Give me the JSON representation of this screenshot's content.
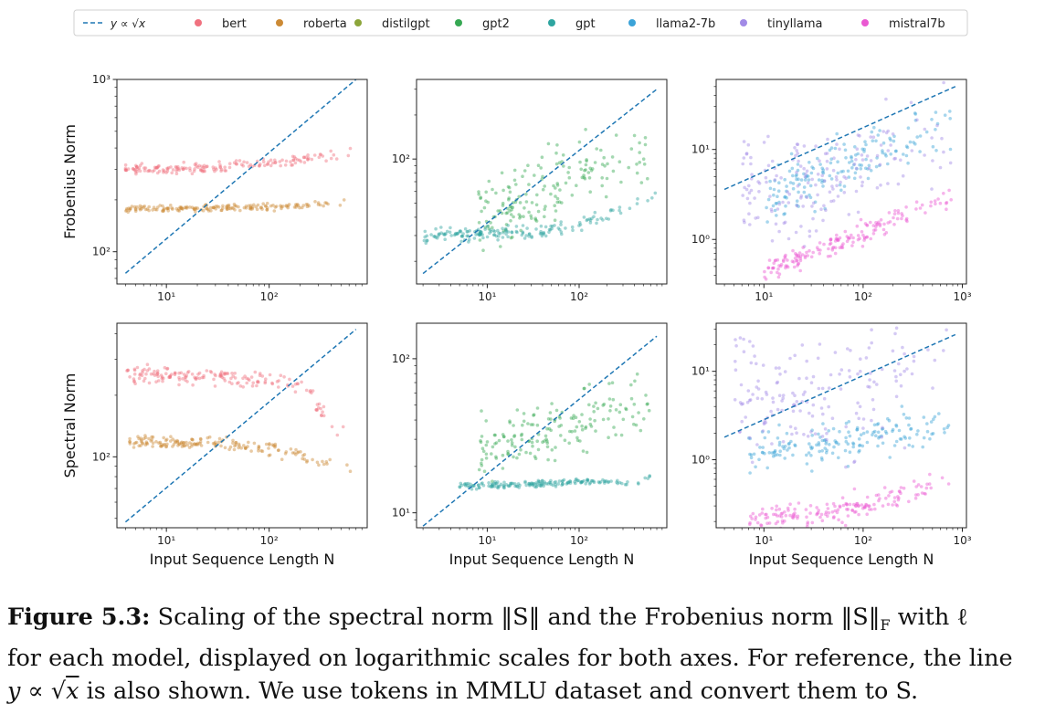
{
  "legend": [
    {
      "label": "y ∝ √x",
      "kind": "line",
      "color": "#1f77b4"
    },
    {
      "label": "bert",
      "kind": "dot",
      "color": "#f0717f"
    },
    {
      "label": "roberta",
      "kind": "dot",
      "color": "#cc8a35"
    },
    {
      "label": "distilgpt",
      "kind": "dot",
      "color": "#8ca53a"
    },
    {
      "label": "gpt2",
      "kind": "dot",
      "color": "#36a853"
    },
    {
      "label": "gpt",
      "kind": "dot",
      "color": "#2ea5a0"
    },
    {
      "label": "llama2-7b",
      "kind": "dot",
      "color": "#3ba3d8"
    },
    {
      "label": "tinyllama",
      "kind": "dot",
      "color": "#a18ae6"
    },
    {
      "label": "mistral7b",
      "kind": "dot",
      "color": "#ea59d2"
    }
  ],
  "caption": {
    "label": "Figure 5.3:",
    "line1": "Scaling of the spectral norm ‖S‖ and the Frobenius norm ‖S‖",
    "line1_sub": "F",
    "line1_end": "with ℓ",
    "line2": "for each model, displayed on logarithmic scales for both axes. For reference, the line",
    "line3_prefix": "y ∝ √",
    "line3_x": "x",
    "line3": "is also shown. We use tokens in MMLU dataset and convert them to S."
  },
  "chart_data": [
    {
      "type": "scatter",
      "row": "frobenius",
      "column": 1,
      "xlabel": "",
      "ylabel": "Frobenius Norm",
      "xscale": "log",
      "yscale": "log",
      "xlim": [
        3.3,
        900
      ],
      "ylim": [
        65,
        1000
      ],
      "xticks": [
        {
          "v": 10,
          "label": "10¹"
        },
        {
          "v": 100,
          "label": "10²"
        }
      ],
      "yticks": [
        {
          "v": 100,
          "label": "10²"
        },
        {
          "v": 1000,
          "label": "10³"
        }
      ],
      "reference": {
        "name": "y ∝ √x",
        "points": [
          [
            4,
            75
          ],
          [
            700,
            1000
          ]
        ]
      },
      "series": [
        {
          "name": "bert",
          "color": "#f0717f",
          "curve": [
            [
              4,
              300
            ],
            [
              20,
              305
            ],
            [
              80,
              320
            ],
            [
              200,
              340
            ],
            [
              450,
              370
            ],
            [
              650,
              375
            ]
          ],
          "spread": 0.015
        },
        {
          "name": "roberta",
          "color": "#cc8a35",
          "curve": [
            [
              4,
              178
            ],
            [
              30,
              180
            ],
            [
              100,
              183
            ],
            [
              300,
              188
            ],
            [
              600,
              195
            ]
          ],
          "spread": 0.01
        }
      ]
    },
    {
      "type": "scatter",
      "row": "frobenius",
      "column": 2,
      "xlabel": "",
      "ylabel": "",
      "xscale": "log",
      "yscale": "log",
      "xlim": [
        1.7,
        900
      ],
      "ylim": [
        14,
        350
      ],
      "xticks": [
        {
          "v": 10,
          "label": "10¹"
        },
        {
          "v": 100,
          "label": "10²"
        }
      ],
      "yticks": [
        {
          "v": 100,
          "label": "10²"
        }
      ],
      "reference": {
        "name": "y ∝ √x",
        "points": [
          [
            2,
            16.5
          ],
          [
            700,
            300
          ]
        ]
      },
      "series": [
        {
          "name": "gpt2",
          "color": "#36a853",
          "curve": [
            [
              8,
              40
            ],
            [
              20,
              48
            ],
            [
              50,
              65
            ],
            [
              150,
              85
            ],
            [
              400,
              105
            ],
            [
              700,
              115
            ]
          ],
          "spread": 0.12
        },
        {
          "name": "gpt",
          "color": "#2ea5a0",
          "curve": [
            [
              2,
              30
            ],
            [
              10,
              31
            ],
            [
              30,
              32
            ],
            [
              80,
              34
            ],
            [
              200,
              40
            ],
            [
              400,
              50
            ],
            [
              700,
              58
            ]
          ],
          "spread": 0.02
        }
      ]
    },
    {
      "type": "scatter",
      "row": "frobenius",
      "column": 3,
      "xlabel": "",
      "ylabel": "",
      "xscale": "log",
      "yscale": "log",
      "xlim": [
        3.3,
        1100
      ],
      "ylim": [
        0.32,
        60
      ],
      "xticks": [
        {
          "v": 10,
          "label": "10¹"
        },
        {
          "v": 100,
          "label": "10²"
        },
        {
          "v": 1000,
          "label": "10³"
        }
      ],
      "yticks": [
        {
          "v": 1,
          "label": "10⁰"
        },
        {
          "v": 10,
          "label": "10¹"
        }
      ],
      "reference": {
        "name": "y ∝ √x",
        "points": [
          [
            4,
            3.6
          ],
          [
            850,
            50
          ]
        ]
      },
      "series": [
        {
          "name": "llama2-7b",
          "color": "#3ba3d8",
          "curve": [
            [
              10,
              3
            ],
            [
              30,
              4.5
            ],
            [
              100,
              8
            ],
            [
              300,
              13
            ],
            [
              800,
              20
            ]
          ],
          "spread": 0.15
        },
        {
          "name": "tinyllama",
          "color": "#a18ae6",
          "curve": [
            [
              6,
              4
            ],
            [
              20,
              3.5
            ],
            [
              60,
              5
            ],
            [
              200,
              8
            ],
            [
              800,
              16
            ]
          ],
          "spread": 0.3
        },
        {
          "name": "mistral7b",
          "color": "#ea59d2",
          "curve": [
            [
              10,
              0.45
            ],
            [
              30,
              0.7
            ],
            [
              100,
              1.2
            ],
            [
              300,
              2
            ],
            [
              800,
              3
            ]
          ],
          "spread": 0.06
        }
      ]
    },
    {
      "type": "scatter",
      "row": "spectral",
      "column": 1,
      "xlabel": "Input Sequence Length N",
      "ylabel": "Spectral Norm",
      "xscale": "log",
      "yscale": "log",
      "xlim": [
        3.3,
        900
      ],
      "ylim": [
        45,
        450
      ],
      "xticks": [
        {
          "v": 10,
          "label": "10¹"
        },
        {
          "v": 100,
          "label": "10²"
        }
      ],
      "yticks": [
        {
          "v": 100,
          "label": "10²"
        }
      ],
      "reference": {
        "name": "y ∝ √x",
        "points": [
          [
            4,
            48
          ],
          [
            700,
            420
          ]
        ]
      },
      "series": [
        {
          "name": "bert",
          "color": "#f0717f",
          "curve": [
            [
              4,
              250
            ],
            [
              30,
              248
            ],
            [
              100,
              238
            ],
            [
              200,
              215
            ],
            [
              300,
              180
            ],
            [
              400,
              140
            ],
            [
              600,
              135
            ]
          ],
          "spread": 0.02
        },
        {
          "name": "roberta",
          "color": "#cc8a35",
          "curve": [
            [
              4,
              118
            ],
            [
              30,
              116
            ],
            [
              100,
              110
            ],
            [
              200,
              102
            ],
            [
              400,
              92
            ],
            [
              650,
              88
            ]
          ],
          "spread": 0.015
        }
      ]
    },
    {
      "type": "scatter",
      "row": "spectral",
      "column": 2,
      "xlabel": "Input Sequence Length N",
      "ylabel": "",
      "xscale": "log",
      "yscale": "log",
      "xlim": [
        1.7,
        900
      ],
      "ylim": [
        8,
        170
      ],
      "xticks": [
        {
          "v": 10,
          "label": "10¹"
        },
        {
          "v": 100,
          "label": "10²"
        }
      ],
      "yticks": [
        {
          "v": 10,
          "label": "10¹"
        },
        {
          "v": 100,
          "label": "10²"
        }
      ],
      "reference": {
        "name": "y ∝ √x",
        "points": [
          [
            2,
            8.2
          ],
          [
            700,
            140
          ]
        ]
      },
      "series": [
        {
          "name": "gpt2",
          "color": "#36a853",
          "curve": [
            [
              8,
              26
            ],
            [
              20,
              30
            ],
            [
              60,
              36
            ],
            [
              200,
              45
            ],
            [
              600,
              55
            ]
          ],
          "spread": 0.1
        },
        {
          "name": "gpt",
          "color": "#2ea5a0",
          "curve": [
            [
              5,
              15
            ],
            [
              30,
              15.3
            ],
            [
              150,
              16
            ],
            [
              400,
              15.5
            ],
            [
              650,
              18
            ]
          ],
          "spread": 0.01
        }
      ]
    },
    {
      "type": "scatter",
      "row": "spectral",
      "column": 3,
      "xlabel": "Input Sequence Length N",
      "ylabel": "",
      "xscale": "log",
      "yscale": "log",
      "xlim": [
        3.3,
        1100
      ],
      "ylim": [
        0.17,
        35
      ],
      "xticks": [
        {
          "v": 10,
          "label": "10¹"
        },
        {
          "v": 100,
          "label": "10²"
        },
        {
          "v": 1000,
          "label": "10³"
        }
      ],
      "yticks": [
        {
          "v": 1,
          "label": "10⁰"
        },
        {
          "v": 10,
          "label": "10¹"
        }
      ],
      "reference": {
        "name": "y ∝ √x",
        "points": [
          [
            4,
            1.8
          ],
          [
            850,
            26
          ]
        ]
      },
      "series": [
        {
          "name": "llama2-7b",
          "color": "#3ba3d8",
          "curve": [
            [
              7,
              1.3
            ],
            [
              30,
              1.4
            ],
            [
              100,
              1.8
            ],
            [
              300,
              2.2
            ],
            [
              800,
              2.5
            ]
          ],
          "spread": 0.12
        },
        {
          "name": "tinyllama",
          "color": "#a18ae6",
          "curve": [
            [
              5,
              6
            ],
            [
              20,
              4
            ],
            [
              60,
              5
            ],
            [
              200,
              9
            ],
            [
              800,
              15
            ]
          ],
          "spread": 0.35
        },
        {
          "name": "mistral7b",
          "color": "#ea59d2",
          "curve": [
            [
              7,
              0.21
            ],
            [
              30,
              0.24
            ],
            [
              100,
              0.3
            ],
            [
              300,
              0.42
            ],
            [
              800,
              0.5
            ]
          ],
          "spread": 0.08
        }
      ]
    }
  ]
}
